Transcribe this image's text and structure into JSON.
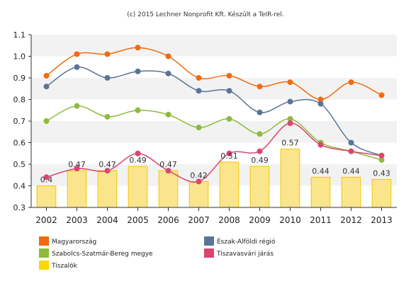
{
  "header": {
    "credit": "(c) 2015 Lechner Nonprofit Kft. Készült a TeIR-rel."
  },
  "chart_data": {
    "type": "bar",
    "x": [
      "2002",
      "2003",
      "2004",
      "2005",
      "2006",
      "2007",
      "2008",
      "2009",
      "2010",
      "2011",
      "2012",
      "2013"
    ],
    "ylim": [
      0.3,
      1.1
    ],
    "yticks": [
      "0.3",
      "0.4",
      "0.5",
      "0.6",
      "0.7",
      "0.8",
      "0.9",
      "1.0",
      "1.1"
    ],
    "grid": "alternating horizontal bands",
    "legend_position": "bottom",
    "bar_series": {
      "name": "Tiszalök",
      "color": "#ffd700",
      "values": [
        0.4,
        0.47,
        0.47,
        0.49,
        0.47,
        0.42,
        0.51,
        0.49,
        0.57,
        0.44,
        0.44,
        0.43
      ],
      "value_labels": [
        "0.4",
        "0.47",
        "0.47",
        "0.49",
        "0.47",
        "0.42",
        "0.51",
        "0.49",
        "0.57",
        "0.44",
        "0.44",
        "0.43"
      ]
    },
    "line_series": [
      {
        "name": "Magyarország",
        "color": "#f26b0f",
        "values": [
          0.91,
          1.01,
          1.01,
          1.04,
          1.0,
          0.9,
          0.91,
          0.86,
          0.88,
          0.8,
          0.88,
          0.82
        ]
      },
      {
        "name": "Észak-Alföldi régió",
        "color": "#5b7496",
        "values": [
          0.86,
          0.95,
          0.9,
          0.93,
          0.92,
          0.84,
          0.84,
          0.74,
          0.79,
          0.78,
          0.6,
          0.54
        ]
      },
      {
        "name": "Szabolcs-Szatmár-Bereg megye",
        "color": "#8dbb3c",
        "values": [
          0.7,
          0.77,
          0.72,
          0.75,
          0.73,
          0.67,
          0.71,
          0.64,
          0.71,
          0.6,
          0.56,
          0.52
        ]
      },
      {
        "name": "Tiszavasvári járás",
        "color": "#d9466f",
        "values": [
          0.44,
          0.48,
          0.47,
          0.55,
          0.47,
          0.42,
          0.55,
          0.56,
          0.69,
          0.59,
          0.56,
          0.54
        ]
      }
    ],
    "legend": [
      {
        "label": "Magyarország",
        "color": "#f26b0f"
      },
      {
        "label": "Észak-Alföldi régió",
        "color": "#5b7496"
      },
      {
        "label": "Szabolcs-Szatmár-Bereg megye",
        "color": "#8dbb3c"
      },
      {
        "label": "Tiszavasvári járás",
        "color": "#d9466f"
      },
      {
        "label": "Tiszalök",
        "color": "#ffd700"
      }
    ]
  }
}
